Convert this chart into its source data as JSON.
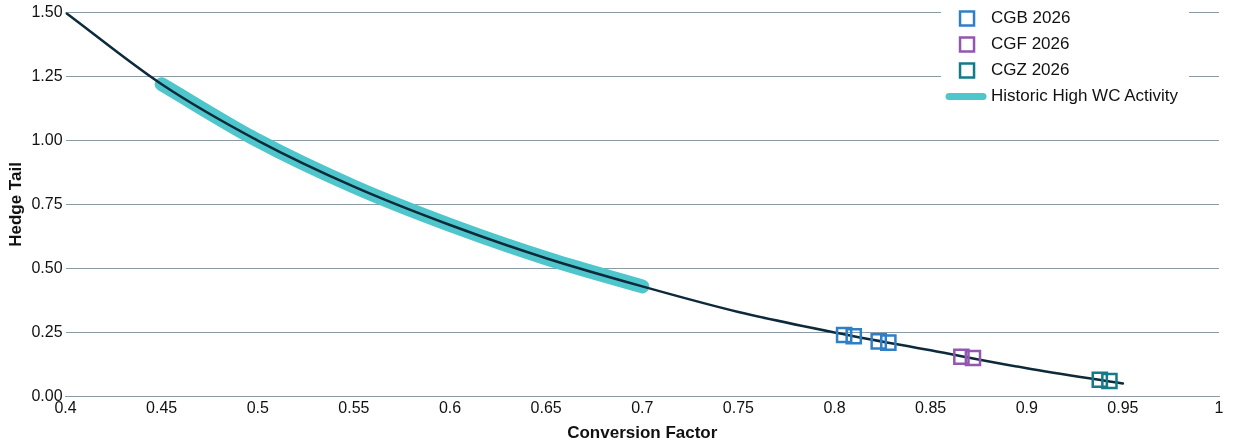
{
  "chart_data": {
    "type": "scatter",
    "xlabel": "Conversion Factor",
    "ylabel": "Hedge Tail",
    "xlim": [
      0.4,
      1
    ],
    "xticks": [
      0.4,
      0.45,
      0.5,
      0.55,
      0.6,
      0.65,
      0.7,
      0.75,
      0.8,
      0.85,
      0.9,
      0.95,
      1
    ],
    "ylim": [
      0,
      1.5
    ],
    "yticks": [
      {
        "value": 0,
        "label": "0.00"
      },
      {
        "value": 0.25,
        "label": "0.25"
      },
      {
        "value": 0.5,
        "label": "0.50"
      },
      {
        "value": 0.75,
        "label": "0.75"
      },
      {
        "value": 1,
        "label": "1.00"
      },
      {
        "value": 1.25,
        "label": "1.25"
      },
      {
        "value": 1.5,
        "label": "1.50"
      }
    ],
    "grid": "y",
    "legend": "top right",
    "series": [
      {
        "name": "CGB 2026",
        "marker": "square",
        "color": "#2f7fc7",
        "x": [
          0.805,
          0.81,
          0.823,
          0.828
        ],
        "values": [
          0.24,
          0.235,
          0.215,
          0.21
        ]
      },
      {
        "name": "CGF 2026",
        "marker": "square",
        "color": "#9257b0",
        "x": [
          0.866,
          0.872
        ],
        "values": [
          0.155,
          0.15
        ]
      },
      {
        "name": "CGZ 2026",
        "marker": "square",
        "color": "#147a8a",
        "x": [
          0.938,
          0.943
        ],
        "values": [
          0.065,
          0.06
        ]
      },
      {
        "name": "Historic High WC Activity",
        "type": "line",
        "color": "#4ec6cc",
        "x": [
          0.45,
          0.5,
          0.55,
          0.6,
          0.65,
          0.7
        ],
        "values": [
          1.22,
          1.0,
          0.82,
          0.67,
          0.54,
          0.43
        ]
      },
      {
        "type": "line",
        "color": "#0d2a3a",
        "x": [
          0.4,
          0.45,
          0.5,
          0.55,
          0.6,
          0.65,
          0.7,
          0.75,
          0.8,
          0.85,
          0.9,
          0.95
        ],
        "values": [
          1.5,
          1.22,
          1.0,
          0.82,
          0.67,
          0.54,
          0.43,
          0.33,
          0.25,
          0.18,
          0.11,
          0.05
        ]
      }
    ]
  }
}
